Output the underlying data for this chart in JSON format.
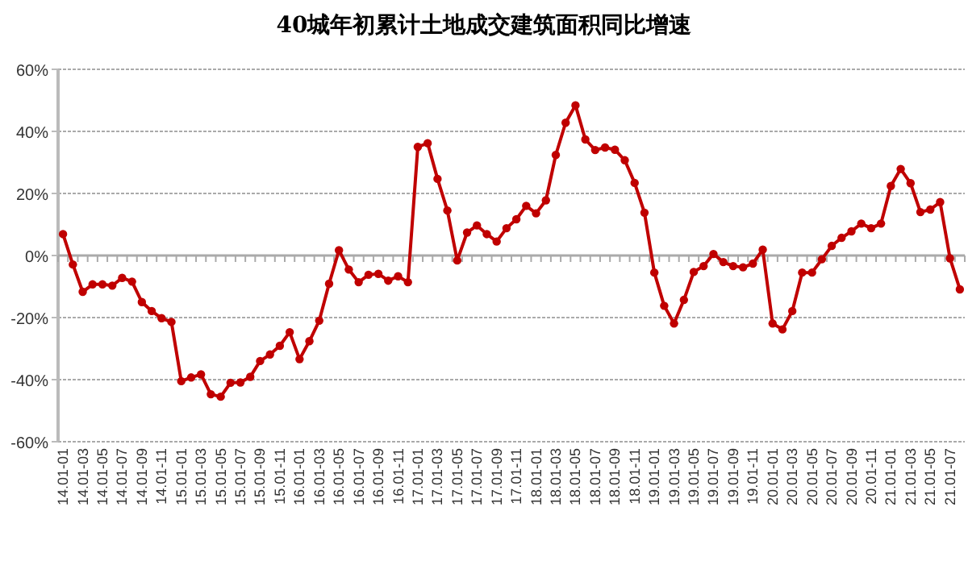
{
  "chart_data": {
    "type": "line",
    "title": "40城年初累计土地成交建筑面积同比增速",
    "categories": [
      "14.01-01",
      null,
      "14.01-03",
      null,
      "14.01-05",
      null,
      "14.01-07",
      null,
      "14.01-09",
      null,
      "14.01-11",
      null,
      "15.01-01",
      null,
      "15.01-03",
      null,
      "15.01-05",
      null,
      "15.01-07",
      null,
      "15.01-09",
      null,
      "15.01-11",
      null,
      "16.01-01",
      null,
      "16.01-03",
      null,
      "16.01-05",
      null,
      "16.01-07",
      null,
      "16.01-09",
      null,
      "16.01-11",
      null,
      "17.01-01",
      null,
      "17.01-03",
      null,
      "17.01-05",
      null,
      "17.01-07",
      null,
      "17.01-09",
      null,
      "17.01-11",
      null,
      "18.01-01",
      null,
      "18.01-03",
      null,
      "18.01-05",
      null,
      "18.01-07",
      null,
      "18.01-09",
      null,
      "18.01-11",
      null,
      "19.01-01",
      null,
      "19.01-03",
      null,
      "19.01-05",
      null,
      "19.01-07",
      null,
      "19.01-09",
      null,
      "19.01-11",
      null,
      "20.01-01",
      null,
      "20.01-03",
      null,
      "20.01-05",
      null,
      "20.01-07",
      null,
      "20.01-09",
      null,
      "20.01-11",
      null,
      "21.01-01",
      null,
      "21.01-03",
      null,
      "21.01-05",
      null,
      "21.01-07",
      null
    ],
    "series": [
      {
        "color": "#c00000",
        "values": [
          6.9,
          -2.9,
          -11.7,
          -9.3,
          -9.3,
          -9.7,
          -7.2,
          -8.4,
          -15,
          -17.9,
          -20.2,
          -21.4,
          -40.5,
          -39.3,
          -38.3,
          -44.7,
          -45.5,
          -41,
          -40.9,
          -39.1,
          -34,
          -31.9,
          -29.1,
          -24.7,
          -33.4,
          -27.6,
          -21,
          -9.1,
          1.7,
          -4.5,
          -8.6,
          -6.2,
          -5.9,
          -8.1,
          -6.7,
          -8.6,
          35,
          36.2,
          24.7,
          14.5,
          -1.6,
          7.4,
          9.7,
          6.9,
          4.5,
          8.8,
          11.7,
          16,
          13.6,
          17.8,
          32.4,
          42.8,
          48.4,
          37.4,
          34,
          34.8,
          34.1,
          30.7,
          23.4,
          13.8,
          -5.5,
          -16.2,
          -21.9,
          -14.3,
          -5.3,
          -3.4,
          0.5,
          -2.1,
          -3.4,
          -3.8,
          -2.6,
          1.9,
          -21.9,
          -23.8,
          -17.9,
          -5.5,
          -5.5,
          -1.2,
          3.1,
          5.7,
          7.8,
          10.3,
          8.8,
          10.3,
          22.4,
          27.9,
          23.3,
          14,
          14.8,
          17.2,
          -0.9,
          -10.9
        ]
      }
    ],
    "ylim": [
      -60,
      60
    ],
    "yticks": [
      {
        "value": -60,
        "label": "-60%"
      },
      {
        "value": -40,
        "label": "-40%"
      },
      {
        "value": -20,
        "label": "-20%"
      },
      {
        "value": 0,
        "label": "0%"
      },
      {
        "value": 20,
        "label": "20%"
      },
      {
        "value": 40,
        "label": "40%"
      },
      {
        "value": 60,
        "label": "60%"
      }
    ],
    "grid": "y",
    "marker": "circle",
    "line_style": "solid"
  }
}
